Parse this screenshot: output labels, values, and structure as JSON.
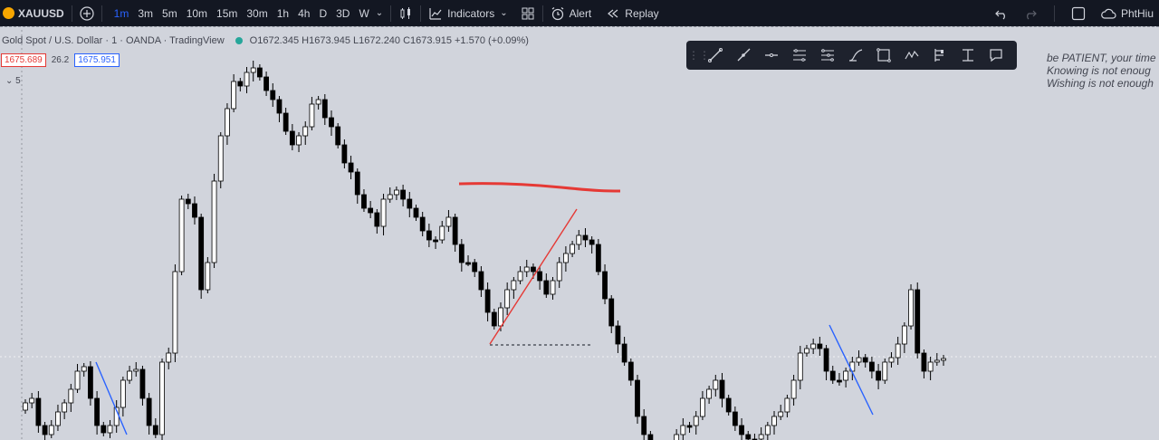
{
  "toolbar": {
    "symbol": "XAUUSD",
    "timeframes": [
      "1m",
      "3m",
      "5m",
      "10m",
      "15m",
      "30m",
      "1h",
      "4h",
      "D",
      "3D",
      "W"
    ],
    "active_timeframe": "1m",
    "indicators_label": "Indicators",
    "alert_label": "Alert",
    "replay_label": "Replay",
    "user_label": "PhtHiu",
    "accent_color": "#2962ff"
  },
  "legend": {
    "title": "Gold Spot / U.S. Dollar",
    "interval": "1",
    "exchange": "OANDA",
    "source": "TradingView",
    "open": "O1672.345",
    "high": "H1673.945",
    "low": "L1672.240",
    "close": "C1673.915",
    "change": "+1.570 (+0.09%)",
    "sell_price": "1675.689",
    "spread": "26.2",
    "buy_price": "1675.951",
    "indicator_count": "5"
  },
  "drawing_tools": [
    "trend-line-icon",
    "ray-icon",
    "horizontal-line-icon",
    "parallel-channel-icon",
    "fib-retracement-icon",
    "brush-icon",
    "rectangle-icon",
    "pattern-icon",
    "long-position-icon",
    "measure-icon",
    "callout-icon"
  ],
  "note": {
    "line1": "be PATIENT, your time",
    "line2": "Knowing is not enoug",
    "line3": "Wishing is not enough"
  },
  "colors": {
    "background": "#d1d4dc",
    "bar_up": "#ffffff",
    "bar_down": "#000000",
    "resistance_line": "#e53935",
    "trend_red": "#e53935",
    "trend_blue": "#2962ff"
  }
}
